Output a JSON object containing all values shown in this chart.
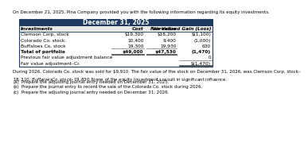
{
  "intro_text": "On December 21, 2025, Pina Company provided you with the following information regarding its equity investments.",
  "table_header": "December 31, 2025",
  "col_headers": [
    "Investments",
    "Cost",
    "Fair Value",
    "Unrealized Gain (Loss)"
  ],
  "rows": [
    [
      "Clemson Corp. stock",
      "$19,300",
      "$18,200",
      "$(1,100)"
    ],
    [
      "Colorado Co. stock",
      "10,400",
      "9,400",
      "(1,000)"
    ],
    [
      "Buffaloes Co. stock",
      "19,300",
      "19,930",
      "630"
    ],
    [
      "Total of portfolio",
      "$49,000",
      "$47,530",
      "(1,470)"
    ],
    [
      "Previous fair value adjustment balance",
      "",
      "",
      "0"
    ],
    [
      "Fair value adjustment–Cr.",
      "",
      "",
      "$(1,470)"
    ]
  ],
  "bold_rows": [
    3
  ],
  "body_text": "During 2026, Colorado Co. stock was sold for $9,910. The fair value of the stock on December 31, 2026, was Clemson Corp. stock–\n$18,310; Buffaloes Co. stock–$19,830. None of the equity investments result in significant influence.",
  "questions": [
    [
      "(a)",
      "Prepare the adjusting journal entry needed on December 31, 2025."
    ],
    [
      "(b)",
      "Prepare the journal entry to record the sale of the Colorado Co. stock during 2026."
    ],
    [
      "(c)",
      "Prepare the adjusting journal entry needed on December 31, 2026."
    ]
  ],
  "header_bg": "#1e3a5f",
  "header_text_color": "#ffffff",
  "subheader_bg": "#e8e8e8",
  "subheader_text_color": "#000000",
  "table_border_color": "#1e3a5f",
  "text_color": "#000000",
  "row_bg": "#ffffff",
  "line_color": "#888888"
}
